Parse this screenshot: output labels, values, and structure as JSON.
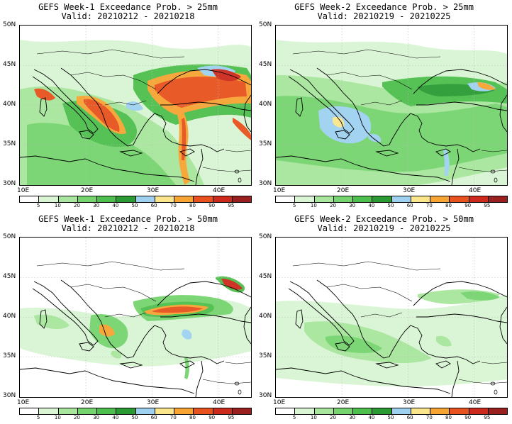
{
  "colorbar": {
    "colors": [
      "#ffffff",
      "#d9f5d3",
      "#a8e69e",
      "#76d46e",
      "#4dbf4c",
      "#2a9a33",
      "#9ed1f0",
      "#fbe68c",
      "#f7a433",
      "#e8521e",
      "#cc2a1d",
      "#9a1f1f"
    ],
    "labels": [
      "5",
      "10",
      "20",
      "30",
      "40",
      "50",
      "60",
      "70",
      "80",
      "90",
      "95"
    ]
  },
  "axes": {
    "lat_labels": [
      "50N",
      "45N",
      "40N",
      "35N",
      "30N"
    ],
    "lon_labels": [
      "10E",
      "20E",
      "30E",
      "40E"
    ]
  },
  "panels": [
    {
      "title_line1": "GEFS Week-1 Exceedance Prob. > 25mm",
      "title_line2": "Valid: 20210212 - 20210218"
    },
    {
      "title_line1": "GEFS Week-2 Exceedance Prob. > 25mm",
      "title_line2": "Valid: 20210219 - 20210225"
    },
    {
      "title_line1": "GEFS Week-1 Exceedance Prob. > 50mm",
      "title_line2": "Valid: 20210212 - 20210218"
    },
    {
      "title_line1": "GEFS Week-2 Exceedance Prob. > 50mm",
      "title_line2": "Valid: 20210219 - 20210225"
    }
  ]
}
